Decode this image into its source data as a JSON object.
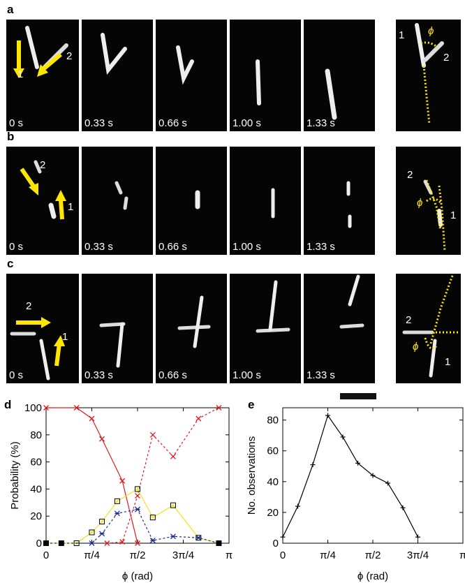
{
  "panels": {
    "a": "a",
    "b": "b",
    "c": "c",
    "d": "d",
    "e": "e"
  },
  "time_labels": [
    "0 s",
    "0.33 s",
    "0.66 s",
    "1.00 s",
    "1.33 s"
  ],
  "filament_labels": {
    "one": "1",
    "two": "2"
  },
  "angle_symbol": "ϕ",
  "chart_data": [
    {
      "type": "line",
      "ylabel": "Probability (%)",
      "xlabel": "ϕ (rad)",
      "xlim": [
        0,
        3.1416
      ],
      "ylim": [
        0,
        100
      ],
      "xticks": [
        "0",
        "π/4",
        "π/2",
        "3π/4",
        "π"
      ],
      "yticks": [
        "0",
        "20",
        "40",
        "60",
        "80",
        "100"
      ],
      "x": [
        0,
        0.2618,
        0.5236,
        0.7854,
        1.0472,
        1.309,
        1.5708,
        1.8326,
        2.0944,
        2.3562,
        2.618,
        2.8798,
        3.1416
      ],
      "series": [
        {
          "color": "#e0191e",
          "dash": false,
          "marker": "x",
          "points": [
            [
              0,
              100
            ],
            [
              0.5236,
              100
            ],
            [
              0.7854,
              92
            ],
            [
              0.9599,
              77
            ],
            [
              1.309,
              46
            ],
            [
              1.5708,
              0
            ]
          ]
        },
        {
          "color": "#e0191e",
          "dash": true,
          "marker": "x",
          "points": [
            [
              1.0472,
              0
            ],
            [
              1.309,
              1
            ],
            [
              1.5708,
              35
            ],
            [
              1.8326,
              80
            ],
            [
              2.1817,
              64
            ],
            [
              2.618,
              92
            ],
            [
              2.9671,
              100
            ]
          ]
        },
        {
          "color": "#f3e21a",
          "dash": false,
          "marker": "square",
          "points": [
            [
              0,
              0
            ],
            [
              0.2618,
              0
            ],
            [
              0.5236,
              0
            ],
            [
              0.7854,
              8
            ],
            [
              0.9599,
              16
            ],
            [
              1.2217,
              31
            ],
            [
              1.5708,
              40
            ],
            [
              1.8326,
              19
            ],
            [
              2.1817,
              28
            ],
            [
              2.618,
              4
            ],
            [
              2.9671,
              0
            ]
          ]
        },
        {
          "color": "#1c2b8a",
          "dash": true,
          "marker": "asterisk",
          "points": [
            [
              0,
              0
            ],
            [
              0.2618,
              0
            ],
            [
              0.7854,
              0
            ],
            [
              0.9599,
              7
            ],
            [
              1.2217,
              22
            ],
            [
              1.5708,
              25
            ],
            [
              1.8326,
              2
            ],
            [
              2.1817,
              5
            ],
            [
              2.618,
              4
            ],
            [
              2.9671,
              0
            ]
          ]
        },
        {
          "color": "#000000",
          "dash": false,
          "marker": "square-fill",
          "points": [
            [
              0,
              0
            ],
            [
              0.2618,
              0
            ],
            [
              2.9671,
              0
            ]
          ]
        }
      ]
    },
    {
      "type": "line",
      "ylabel": "No. observations",
      "xlabel": "ϕ (rad)",
      "xlim": [
        0,
        3.1416
      ],
      "ylim": [
        0,
        88
      ],
      "xticks": [
        "0",
        "π/4",
        "π/2",
        "3π/4",
        "π"
      ],
      "yticks": [
        "0",
        "20",
        "40",
        "60",
        "80"
      ],
      "series": [
        {
          "color": "#000000",
          "dash": false,
          "marker": "plus",
          "points": [
            [
              0,
              4
            ],
            [
              0.2618,
              24
            ],
            [
              0.5236,
              51
            ],
            [
              0.7854,
              83
            ],
            [
              1.0472,
              69
            ],
            [
              1.309,
              52
            ],
            [
              1.5708,
              44
            ],
            [
              1.8326,
              39
            ],
            [
              2.0944,
              23
            ],
            [
              2.3562,
              4
            ]
          ]
        }
      ]
    }
  ]
}
